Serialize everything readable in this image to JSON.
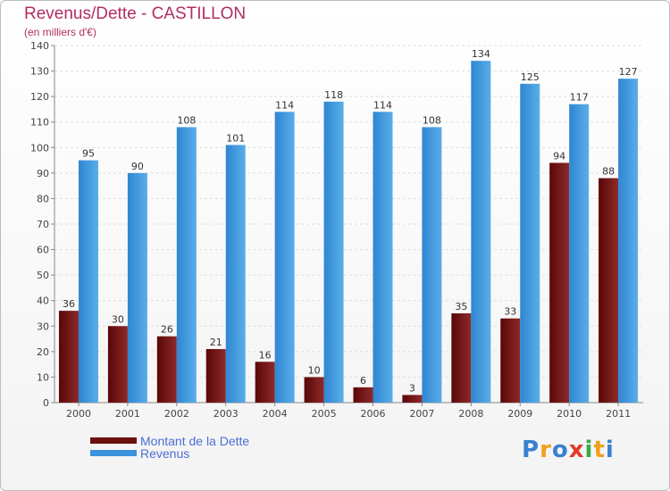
{
  "header": {
    "title": "Revenus/Dette - CASTILLON",
    "subtitle": "(en milliers d'€)"
  },
  "chart_data": {
    "type": "bar",
    "categories": [
      "2000",
      "2001",
      "2002",
      "2003",
      "2004",
      "2005",
      "2006",
      "2007",
      "2008",
      "2009",
      "2010",
      "2011"
    ],
    "series": [
      {
        "name": "Montant de la Dette",
        "values": [
          36,
          30,
          26,
          21,
          16,
          10,
          6,
          3,
          35,
          33,
          94,
          88
        ],
        "color": "#7b1a1a"
      },
      {
        "name": "Revenus",
        "values": [
          95,
          90,
          108,
          101,
          114,
          118,
          114,
          108,
          134,
          125,
          117,
          127
        ],
        "color": "#3a93dc"
      }
    ],
    "yticks": [
      0,
      10,
      20,
      30,
      40,
      50,
      60,
      70,
      80,
      90,
      100,
      110,
      120,
      130,
      140
    ],
    "ylim": [
      0,
      140
    ],
    "grid": true,
    "legend": "bottom-left"
  },
  "legend": {
    "items": [
      {
        "label": "Montant de la Dette",
        "color": "#6b0f0f"
      },
      {
        "label": "Revenus",
        "color": "#3a93dc"
      }
    ]
  },
  "logo": {
    "text": "Proxiti",
    "colors": [
      "#3a7fd0",
      "#f0a020",
      "#3a7fd0",
      "#e23a2a",
      "#3aa84a",
      "#f0a020",
      "#3a7fd0"
    ]
  }
}
